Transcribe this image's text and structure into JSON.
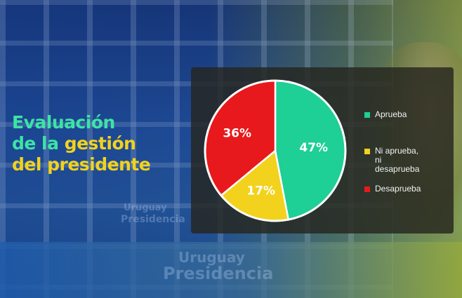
{
  "title": {
    "line1_green": "Evaluación",
    "line2_green": "de la ",
    "line2_yellow": "gestión",
    "line3_yellow": "del presidente"
  },
  "background_text": {
    "sign_small_1": "Uruguay",
    "sign_small_2": "Presidencia",
    "sign_large_1": "Uruguay",
    "sign_large_2": "Presidencia"
  },
  "colors": {
    "aprueba": "#1ecf96",
    "ni": "#f2d21c",
    "desaprueba": "#e8191c",
    "title_green": "#3ee3a6",
    "title_yellow": "#f2d21c"
  },
  "chart_data": {
    "type": "pie",
    "title": "",
    "start": "12 o'clock, clockwise",
    "slices": [
      {
        "label": "Aprueba",
        "value": 47,
        "display": "47%",
        "color": "#1ecf96"
      },
      {
        "label": "Ni aprueba,\nni desaprueba",
        "value": 17,
        "display": "17%",
        "color": "#f2d21c"
      },
      {
        "label": "Desaprueba",
        "value": 36,
        "display": "36%",
        "color": "#e8191c"
      }
    ],
    "legend_position": "right"
  }
}
